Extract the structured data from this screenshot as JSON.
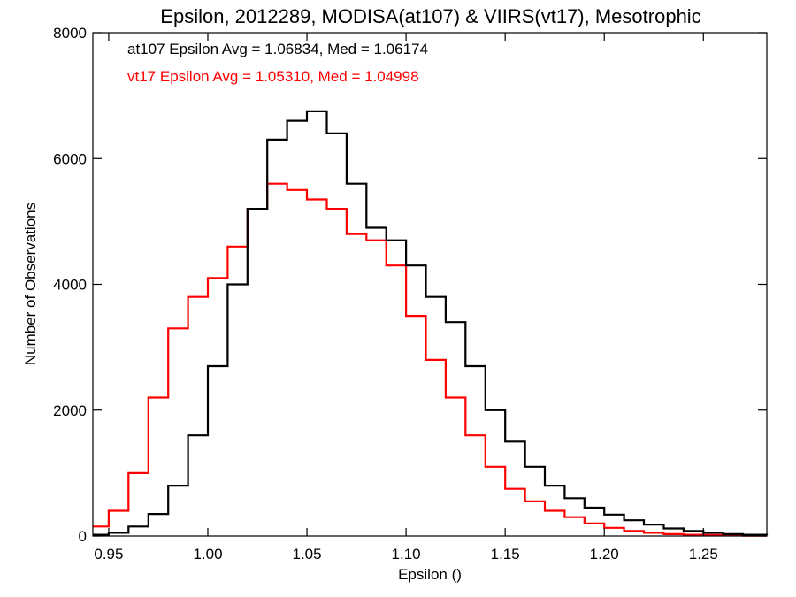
{
  "chart_data": {
    "type": "line",
    "title": "Epsilon, 2012289, MODISA(at107) & VIIRS(vt17), Mesotrophic",
    "xlabel": "Epsilon ()",
    "ylabel": "Number of Observations",
    "xlim": [
      0.942,
      1.282
    ],
    "ylim": [
      0,
      8000
    ],
    "x_ticks": [
      0.95,
      1.0,
      1.05,
      1.1,
      1.15,
      1.2,
      1.25
    ],
    "x_tick_labels": [
      "0.95",
      "1.00",
      "1.05",
      "1.10",
      "1.15",
      "1.20",
      "1.25"
    ],
    "y_ticks": [
      0,
      2000,
      4000,
      6000,
      8000
    ],
    "y_tick_labels": [
      "0",
      "2000",
      "4000",
      "6000",
      "8000"
    ],
    "grid": false,
    "legend": "none",
    "annotations": [
      {
        "text": "at107 Epsilon Avg = 1.06834, Med = 1.06174",
        "color": "#000000"
      },
      {
        "text": "vt17 Epsilon Avg = 1.05310, Med = 1.04998",
        "color": "#ff0000"
      }
    ],
    "series": [
      {
        "color": "#000000",
        "x": [
          0.942,
          0.95,
          0.96,
          0.97,
          0.98,
          0.99,
          1.0,
          1.01,
          1.02,
          1.03,
          1.04,
          1.05,
          1.06,
          1.07,
          1.08,
          1.09,
          1.1,
          1.11,
          1.12,
          1.13,
          1.14,
          1.15,
          1.16,
          1.17,
          1.18,
          1.19,
          1.2,
          1.21,
          1.22,
          1.23,
          1.24,
          1.25,
          1.26,
          1.27,
          1.282
        ],
        "y": [
          20,
          50,
          150,
          350,
          800,
          1600,
          2700,
          4000,
          5200,
          6300,
          6600,
          6750,
          6400,
          5600,
          4900,
          4700,
          4300,
          3800,
          3400,
          2700,
          2000,
          1500,
          1100,
          800,
          600,
          450,
          340,
          250,
          180,
          120,
          80,
          50,
          30,
          20,
          10
        ]
      },
      {
        "color": "#ff0000",
        "x": [
          0.942,
          0.95,
          0.96,
          0.97,
          0.98,
          0.99,
          1.0,
          1.01,
          1.02,
          1.03,
          1.04,
          1.05,
          1.06,
          1.07,
          1.08,
          1.09,
          1.1,
          1.11,
          1.12,
          1.13,
          1.14,
          1.15,
          1.16,
          1.17,
          1.18,
          1.19,
          1.2,
          1.21,
          1.22,
          1.23,
          1.24,
          1.25,
          1.26,
          1.27,
          1.282
        ],
        "y": [
          150,
          400,
          1000,
          2200,
          3300,
          3800,
          4100,
          4600,
          5200,
          5600,
          5500,
          5350,
          5200,
          4800,
          4700,
          4300,
          3500,
          2800,
          2200,
          1600,
          1100,
          750,
          550,
          400,
          300,
          200,
          130,
          80,
          50,
          30,
          20,
          15,
          10,
          5,
          5
        ]
      }
    ]
  }
}
